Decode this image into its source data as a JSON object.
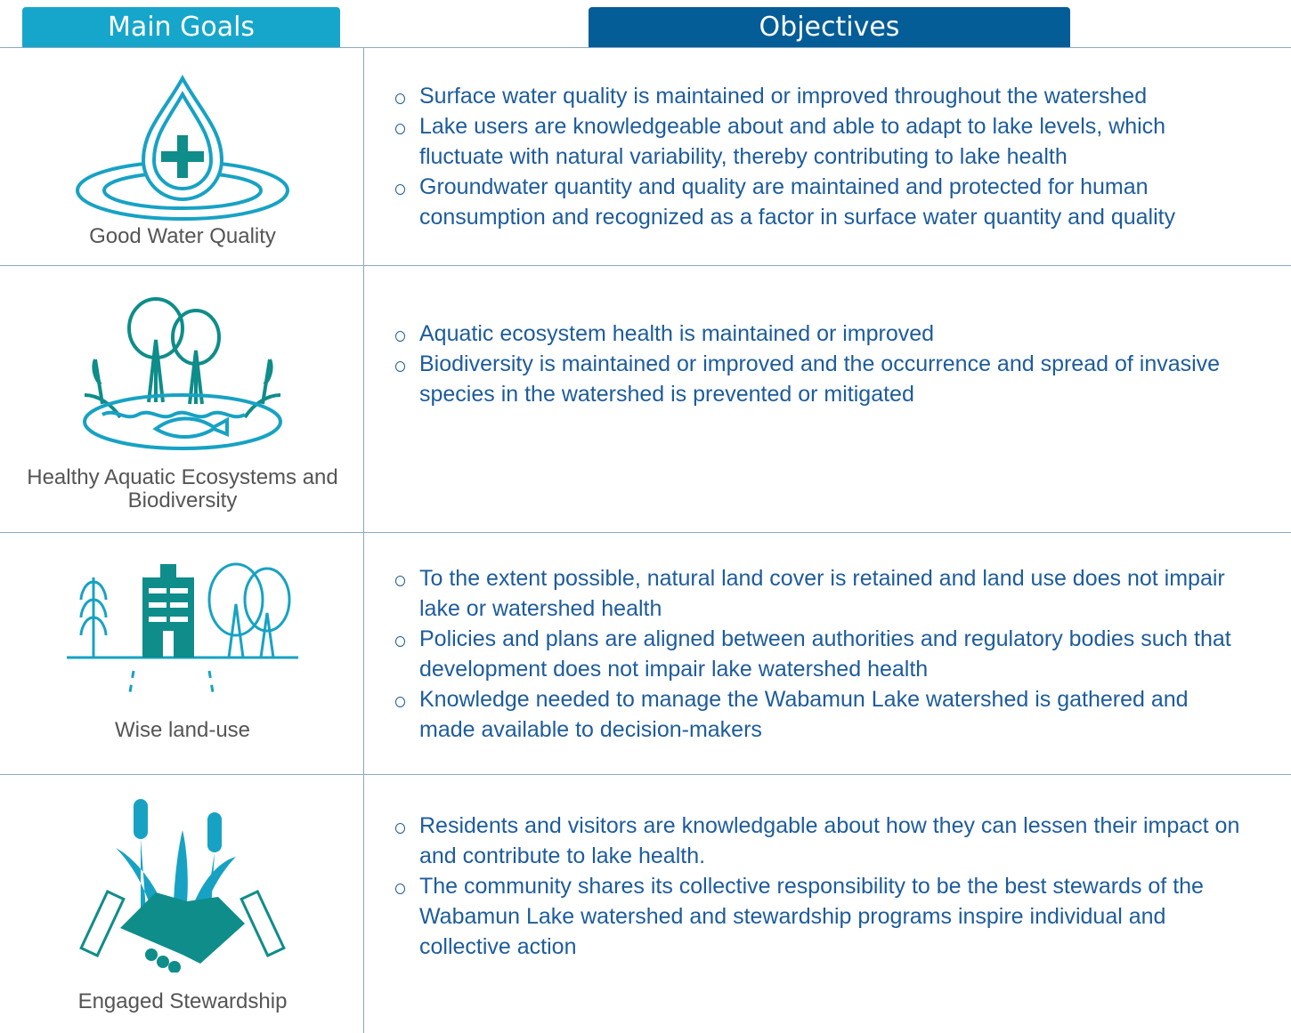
{
  "header": {
    "goals_title": "Main Goals",
    "objectives_title": "Objectives"
  },
  "rows": [
    {
      "goal": "Good Water Quality",
      "objectives": [
        "Surface water quality is maintained or improved throughout the watershed",
        "Lake users are knowledgeable about and able to adapt to lake levels, which fluctuate with natural variability, thereby contributing to lake health",
        "Groundwater quantity and quality are maintained and protected for human consumption and recognized as a factor in surface water quantity and quality"
      ]
    },
    {
      "goal": "Healthy Aquatic Ecosystems and Biodiversity",
      "objectives": [
        "Aquatic ecosystem health is maintained or improved",
        "Biodiversity is maintained or improved and the occurrence and spread of invasive species  in the watershed is prevented or mitigated"
      ]
    },
    {
      "goal": "Wise land-use",
      "objectives": [
        "To the extent possible, natural land cover is retained and land use does not impair lake or watershed health",
        "Policies and plans are aligned between authorities and regulatory bodies such that development does not impair lake watershed health",
        "Knowledge needed to manage the Wabamun Lake watershed is gathered and made available to decision-makers"
      ]
    },
    {
      "goal": "Engaged Stewardship",
      "objectives": [
        "Residents and visitors are knowledgable about how they can lessen their impact on and contribute to lake health.",
        "The community shares its collective responsibility to be the best stewards of the Wabamun Lake watershed and stewardship programs inspire individual and collective action"
      ]
    }
  ]
}
